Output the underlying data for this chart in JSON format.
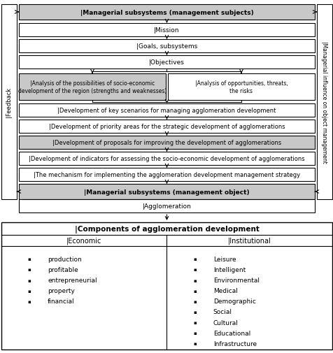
{
  "bg_color": "#ffffff",
  "boxes": [
    {
      "id": "subj",
      "text": "|Managerial subsystems (management subjects)",
      "bold": true,
      "fontsize": 6.5,
      "fill": "#c8c8c8"
    },
    {
      "id": "mission",
      "text": "|Mission",
      "bold": false,
      "fontsize": 6.5,
      "fill": "#ffffff"
    },
    {
      "id": "goals",
      "text": "|Goals, subsystems",
      "bold": false,
      "fontsize": 6.5,
      "fill": "#ffffff"
    },
    {
      "id": "obj",
      "text": "|Objectives",
      "bold": false,
      "fontsize": 6.5,
      "fill": "#ffffff"
    },
    {
      "id": "swot",
      "text": "|Analysis of the possibilities of socio-economic\ndevelopment of the region (strengths and weaknesses)",
      "bold": false,
      "fontsize": 5.5,
      "fill": "#c8c8c8"
    },
    {
      "id": "opport",
      "text": "|Analysis of opportunities, threats,\nthe risks",
      "bold": false,
      "fontsize": 5.5,
      "fill": "#ffffff"
    },
    {
      "id": "scenarios",
      "text": "|Development of key scenarios for managing agglomeration development",
      "bold": false,
      "fontsize": 6.0,
      "fill": "#ffffff"
    },
    {
      "id": "priority",
      "text": "|Development of priority areas for the strategic development of agglomerations",
      "bold": false,
      "fontsize": 6.0,
      "fill": "#ffffff"
    },
    {
      "id": "proposals",
      "text": "|Development of proposals for improving the development of agglomerations",
      "bold": false,
      "fontsize": 6.0,
      "fill": "#c8c8c8"
    },
    {
      "id": "indicators",
      "text": "|Development of indicators for assessing the socio-economic development of agglomerations",
      "bold": false,
      "fontsize": 6.0,
      "fill": "#ffffff"
    },
    {
      "id": "mechanism",
      "text": "|The mechanism for implementing the agglomeration development management strategy",
      "bold": false,
      "fontsize": 6.0,
      "fill": "#ffffff"
    },
    {
      "id": "obj2",
      "text": "|Managerial subsystems (management object)",
      "bold": true,
      "fontsize": 6.5,
      "fill": "#c8c8c8"
    },
    {
      "id": "agglom",
      "text": "|Agglomeration",
      "bold": false,
      "fontsize": 6.5,
      "fill": "#ffffff"
    }
  ],
  "bottom_box": {
    "title": "|Components of agglomeration development",
    "title_fontsize": 7.5,
    "col1_title": "|Economic",
    "col1_items": [
      "production",
      "profitable",
      "entrepreneurial",
      "property",
      "financial"
    ],
    "col2_title": "|Institutional",
    "col2_items": [
      "Leisure",
      "Intelligent",
      "Environmental",
      "Medical",
      "Demographic",
      "Social",
      "Cultural",
      "Educational",
      "Infrastructure"
    ],
    "fontsize": 6.5
  },
  "feedback_text": "|Feedback",
  "influence_text": "|Managerial influence on object management"
}
